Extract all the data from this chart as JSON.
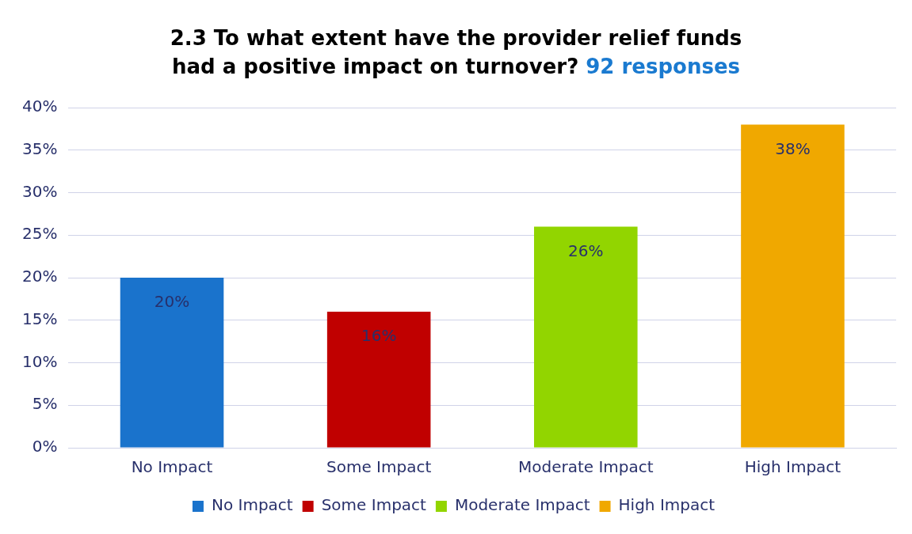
{
  "chart_data": {
    "type": "bar",
    "title": "2.3 To what extent have the provider relief funds had a positive impact on turnover?",
    "subtitle": "92 responses",
    "categories": [
      "No Impact",
      "Some Impact",
      "Moderate Impact",
      "High Impact"
    ],
    "series": [
      {
        "name": "No Impact",
        "color": "#1a73cc",
        "values": [
          20,
          null,
          null,
          null
        ],
        "value_labels": [
          "20%",
          null,
          null,
          null
        ]
      },
      {
        "name": "Some Impact",
        "color": "#c00000",
        "values": [
          null,
          16,
          null,
          null
        ],
        "value_labels": [
          null,
          "16%",
          null,
          null
        ]
      },
      {
        "name": "Moderate Impact",
        "color": "#92d500",
        "values": [
          null,
          null,
          26,
          null
        ],
        "value_labels": [
          null,
          null,
          "26%",
          null
        ]
      },
      {
        "name": "High Impact",
        "color": "#f0a800",
        "values": [
          null,
          null,
          null,
          38
        ],
        "value_labels": [
          null,
          null,
          null,
          "38%"
        ]
      }
    ],
    "ylim": [
      0,
      40
    ],
    "yticks": [
      {
        "value": 0,
        "label": "0%"
      },
      {
        "value": 5,
        "label": "5%"
      },
      {
        "value": 10,
        "label": "10%"
      },
      {
        "value": 15,
        "label": "15%"
      },
      {
        "value": 20,
        "label": "20%"
      },
      {
        "value": 25,
        "label": "25%"
      },
      {
        "value": 30,
        "label": "30%"
      },
      {
        "value": 35,
        "label": "35%"
      },
      {
        "value": 40,
        "label": "40%"
      }
    ],
    "grid": "y",
    "legend": "bottom"
  }
}
